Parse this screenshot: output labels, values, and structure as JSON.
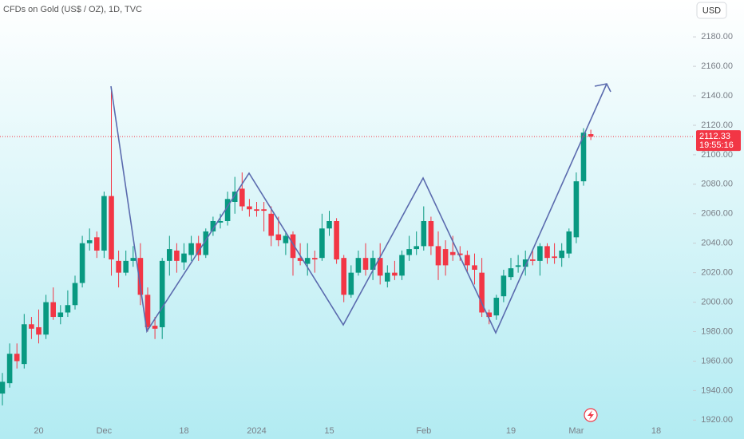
{
  "chart_data": {
    "type": "candlestick",
    "title": "CFDs on Gold (US$ / OZ), 1D, TVC",
    "currency": "USD",
    "up_color": "#089981",
    "down_color": "#f23645",
    "last_price": 2112.33,
    "countdown": "19:55:16",
    "categories": [
      null,
      null,
      null,
      null,
      null,
      "20",
      null,
      null,
      null,
      null,
      null,
      null,
      null,
      null,
      "Dec",
      null,
      null,
      null,
      null,
      null,
      null,
      null,
      null,
      null,
      null,
      "18",
      null,
      null,
      null,
      null,
      null,
      null,
      null,
      null,
      null,
      "2024",
      null,
      null,
      null,
      null,
      null,
      null,
      null,
      null,
      null,
      "15",
      null,
      null,
      null,
      null,
      null,
      null,
      null,
      null,
      null,
      null,
      null,
      null,
      "Feb",
      null,
      null,
      null,
      null,
      null,
      null,
      null,
      null,
      null,
      null,
      null,
      "19",
      null,
      null,
      null,
      null,
      null,
      null,
      null,
      null,
      "Mar",
      null,
      null,
      null,
      null,
      null,
      null,
      null,
      null,
      null,
      null,
      "18",
      null,
      null,
      null,
      null
    ],
    "open": [
      1938,
      1945,
      1965,
      1958,
      1985,
      1983,
      1978,
      2000,
      1990,
      1993,
      1998,
      2013,
      2040,
      2044,
      2035,
      2072,
      2028,
      2020,
      2028,
      2030,
      2005,
      1984,
      1983,
      2028,
      2035,
      2027,
      2032,
      2040,
      2032,
      2048,
      2054,
      2055,
      2068,
      2077,
      2065,
      2063,
      2063,
      2060,
      2046,
      2040,
      2046,
      2030,
      2026,
      2030,
      2030,
      2050,
      2055,
      2030,
      2005,
      2020,
      2030,
      2022,
      2030,
      2014,
      2020,
      2018,
      2032,
      2036,
      2038,
      2055,
      2038,
      2036,
      2034,
      2033,
      2032,
      2025,
      2020,
      1993,
      1991,
      2004,
      2017,
      2024,
      2024,
      2029,
      2028,
      2038,
      2031,
      2030,
      2033,
      2044,
      2082,
      2114,
      null,
      null,
      null,
      null,
      null,
      null,
      null,
      null,
      null,
      null,
      null,
      null,
      null
    ],
    "high": [
      1952,
      1972,
      1972,
      1992,
      1990,
      1995,
      2005,
      2010,
      1998,
      2008,
      2018,
      2045,
      2050,
      2048,
      2075,
      2146,
      2035,
      2035,
      2038,
      2040,
      2010,
      1990,
      2030,
      2045,
      2040,
      2040,
      2045,
      2045,
      2050,
      2058,
      2060,
      2075,
      2085,
      2088,
      2070,
      2068,
      2068,
      2065,
      2058,
      2048,
      2048,
      2040,
      2040,
      2035,
      2060,
      2062,
      2057,
      2032,
      2025,
      2035,
      2040,
      2035,
      2040,
      2025,
      2028,
      2035,
      2045,
      2048,
      2065,
      2058,
      2048,
      2042,
      2045,
      2038,
      2035,
      2033,
      2030,
      1995,
      2005,
      2022,
      2030,
      2032,
      2035,
      2035,
      2040,
      2040,
      2040,
      2040,
      2050,
      2088,
      2118,
      2117,
      null,
      null,
      null,
      null,
      null,
      null,
      null,
      null,
      null,
      null,
      null,
      null,
      null
    ],
    "low": [
      1930,
      1942,
      1955,
      1955,
      1975,
      1972,
      1975,
      1988,
      1985,
      1990,
      1995,
      2010,
      2035,
      2030,
      2030,
      2018,
      2010,
      2018,
      2024,
      1998,
      1980,
      1975,
      1975,
      2018,
      2020,
      2022,
      2028,
      2028,
      2030,
      2045,
      2050,
      2052,
      2060,
      2062,
      2058,
      2058,
      2048,
      2038,
      2038,
      2032,
      2018,
      2025,
      2018,
      2020,
      2028,
      2045,
      2026,
      2000,
      2003,
      2018,
      2018,
      2015,
      2012,
      2010,
      2015,
      2015,
      2028,
      2032,
      2035,
      2032,
      2015,
      2018,
      2028,
      2028,
      2020,
      2012,
      1990,
      1985,
      1988,
      2000,
      2015,
      2020,
      2018,
      2025,
      2018,
      2026,
      2026,
      2024,
      2030,
      2040,
      2079,
      2110,
      null,
      null,
      null,
      null,
      null,
      null,
      null,
      null,
      null,
      null,
      null,
      null,
      null
    ],
    "close": [
      1946,
      1965,
      1960,
      1985,
      1982,
      1978,
      2000,
      1990,
      1993,
      1998,
      2013,
      2040,
      2042,
      2035,
      2072,
      2029,
      2020,
      2028,
      2030,
      2005,
      1983,
      1982,
      2028,
      2036,
      2028,
      2033,
      2040,
      2032,
      2048,
      2055,
      2055,
      2070,
      2075,
      2065,
      2063,
      2062,
      2062,
      2045,
      2042,
      2045,
      2030,
      2028,
      2030,
      2029,
      2050,
      2055,
      2029,
      2005,
      2020,
      2030,
      2022,
      2030,
      2018,
      2020,
      2018,
      2032,
      2036,
      2038,
      2055,
      2038,
      2025,
      2025,
      2032,
      2032,
      2025,
      2022,
      1993,
      1990,
      2003,
      2018,
      2023,
      2025,
      2029,
      2028,
      2038,
      2030,
      2030,
      2035,
      2048,
      2082,
      2115,
      2112.33,
      null,
      null,
      null,
      null,
      null,
      null,
      null,
      null,
      null,
      null,
      null,
      null,
      null
    ],
    "ylim": [
      1918,
      2205
    ],
    "yticks": [
      {
        "value": 1920,
        "label": "1920.00"
      },
      {
        "value": 1940,
        "label": "1940.00"
      },
      {
        "value": 1960,
        "label": "1960.00"
      },
      {
        "value": 1980,
        "label": "1980.00"
      },
      {
        "value": 2000,
        "label": "2000.00"
      },
      {
        "value": 2020,
        "label": "2020.00"
      },
      {
        "value": 2040,
        "label": "2040.00"
      },
      {
        "value": 2060,
        "label": "2060.00"
      },
      {
        "value": 2080,
        "label": "2080.00"
      },
      {
        "value": 2100,
        "label": "2100.00"
      },
      {
        "value": 2120,
        "label": "2120.00"
      },
      {
        "value": 2140,
        "label": "2140.00"
      },
      {
        "value": 2160,
        "label": "2160.00"
      },
      {
        "value": 2180,
        "label": "2180.00"
      }
    ]
  }
}
